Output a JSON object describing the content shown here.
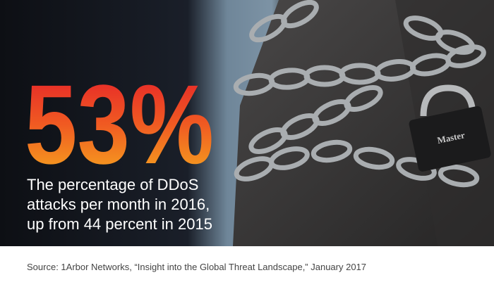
{
  "stat": {
    "value": "53%",
    "description": [
      "The percentage of DDoS",
      "attacks per month in 2016,",
      "up from 44 percent in 2015"
    ]
  },
  "padlock_label": "Master",
  "source": "Source: 1Arbor Networks, “Insight into the Global Threat Landscape,” January 2017"
}
